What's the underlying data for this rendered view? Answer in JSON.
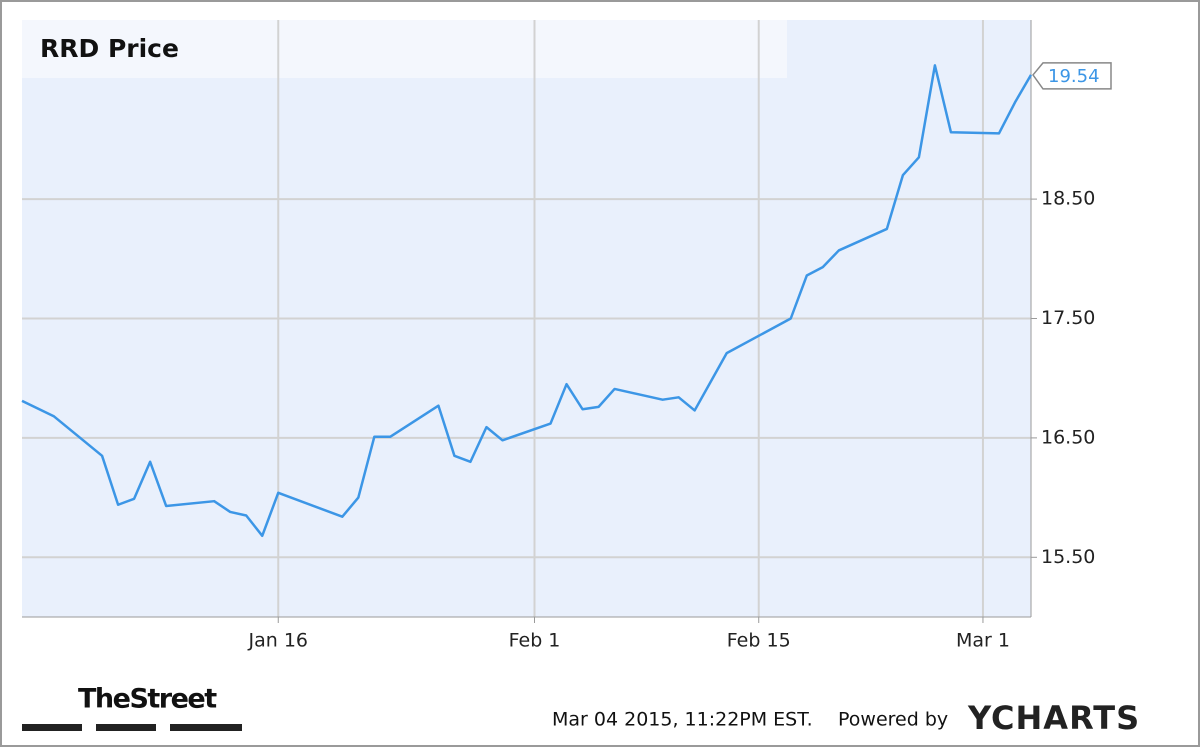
{
  "chart_data": {
    "type": "line",
    "title": "RRD Price",
    "color": "#3c96e6",
    "x": [
      "Dec 31",
      "Jan 2",
      "Jan 5",
      "Jan 6",
      "Jan 7",
      "Jan 8",
      "Jan 9",
      "Jan 12",
      "Jan 13",
      "Jan 14",
      "Jan 15",
      "Jan 16",
      "Jan 20",
      "Jan 21",
      "Jan 22",
      "Jan 23",
      "Jan 26",
      "Jan 27",
      "Jan 28",
      "Jan 29",
      "Jan 30",
      "Feb 2",
      "Feb 3",
      "Feb 4",
      "Feb 5",
      "Feb 6",
      "Feb 9",
      "Feb 10",
      "Feb 11",
      "Feb 13",
      "Feb 17",
      "Feb 18",
      "Feb 19",
      "Feb 20",
      "Feb 23",
      "Feb 24",
      "Feb 25",
      "Feb 26",
      "Feb 27",
      "Mar 2",
      "Mar 3",
      "Mar 4"
    ],
    "values": [
      16.81,
      16.68,
      16.35,
      15.94,
      15.99,
      16.3,
      15.93,
      15.97,
      15.88,
      15.85,
      15.68,
      16.04,
      15.84,
      16.0,
      16.51,
      16.51,
      16.77,
      16.35,
      16.3,
      16.59,
      16.48,
      16.62,
      16.95,
      16.74,
      16.76,
      16.91,
      16.82,
      16.84,
      16.73,
      17.21,
      17.5,
      17.86,
      17.93,
      18.07,
      18.25,
      18.7,
      18.85,
      19.62,
      19.06,
      19.05,
      19.31,
      19.54
    ],
    "xlim": [
      "Dec 31",
      "Mar 4"
    ],
    "xticks": [
      "Jan 16",
      "Feb 1",
      "Feb 15",
      "Mar 1"
    ],
    "ylim": [
      15,
      20
    ],
    "yticks": [
      {
        "value": 15.5,
        "label": "15.50"
      },
      {
        "value": 16.5,
        "label": "16.50"
      },
      {
        "value": 17.5,
        "label": "17.50"
      },
      {
        "value": 18.5,
        "label": "18.50"
      }
    ],
    "grid": true
  },
  "footer": {
    "brand": "TheStreet",
    "timestamp": "Mar 04 2015, 11:22PM EST.",
    "powered": "Powered by",
    "logo": "YCHARTS"
  }
}
